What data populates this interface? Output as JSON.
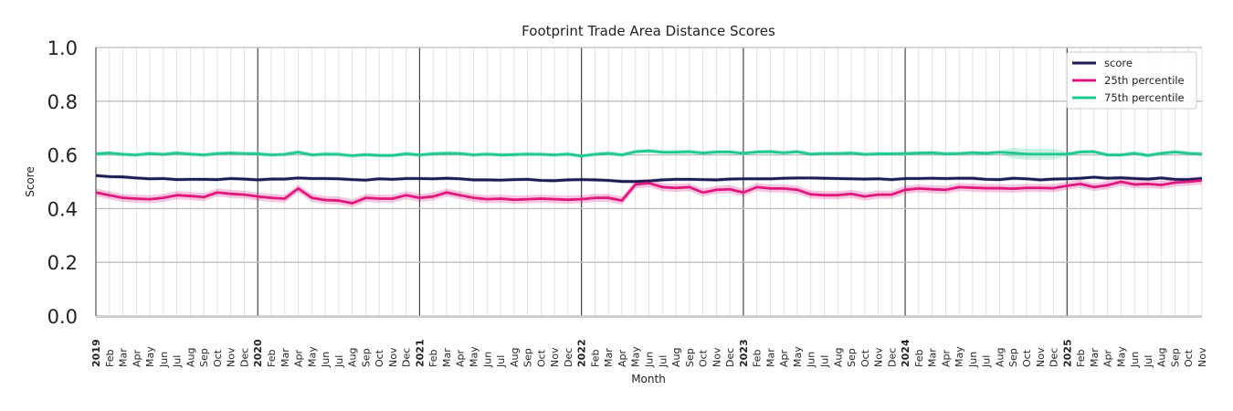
{
  "chart_data": {
    "type": "line",
    "title": "Footprint Trade Area Distance Scores",
    "xlabel": "Month",
    "ylabel": "Score",
    "ylim": [
      0.0,
      1.0
    ],
    "yticks": [
      "0.0",
      "0.2",
      "0.4",
      "0.6",
      "0.8",
      "1.0"
    ],
    "grid": true,
    "legend_position": "top-right",
    "x_start": "2019-01",
    "x_end": "2025-11",
    "x_tick_labels": [
      "2019",
      "Feb",
      "Mar",
      "Apr",
      "May",
      "Jun",
      "Jul",
      "Aug",
      "Sep",
      "Oct",
      "Nov",
      "Dec",
      "2020",
      "Feb",
      "Mar",
      "Apr",
      "May",
      "Jun",
      "Jul",
      "Aug",
      "Sep",
      "Oct",
      "Nov",
      "Dec",
      "2021",
      "Feb",
      "Mar",
      "Apr",
      "May",
      "Jun",
      "Jul",
      "Aug",
      "Sep",
      "Oct",
      "Nov",
      "Dec",
      "2022",
      "Feb",
      "Mar",
      "Apr",
      "May",
      "Jun",
      "Jul",
      "Aug",
      "Sep",
      "Oct",
      "Nov",
      "Dec",
      "2023",
      "Feb",
      "Mar",
      "Apr",
      "May",
      "Jun",
      "Jul",
      "Aug",
      "Sep",
      "Oct",
      "Nov",
      "Dec",
      "2024",
      "Feb",
      "Mar",
      "Apr",
      "May",
      "Jun",
      "Jul",
      "Aug",
      "Sep",
      "Oct",
      "Nov",
      "Dec",
      "2025",
      "Feb",
      "Mar",
      "Apr",
      "May",
      "Jun",
      "Jul",
      "Aug",
      "Sep",
      "Oct",
      "Nov"
    ],
    "series": [
      {
        "name": "score",
        "color": "#1c1c54",
        "values": [
          0.523,
          0.519,
          0.518,
          0.514,
          0.511,
          0.512,
          0.508,
          0.509,
          0.509,
          0.508,
          0.512,
          0.51,
          0.507,
          0.51,
          0.51,
          0.514,
          0.512,
          0.512,
          0.511,
          0.508,
          0.506,
          0.511,
          0.509,
          0.512,
          0.512,
          0.511,
          0.513,
          0.511,
          0.507,
          0.507,
          0.506,
          0.508,
          0.509,
          0.505,
          0.504,
          0.507,
          0.508,
          0.507,
          0.505,
          0.501,
          0.501,
          0.503,
          0.507,
          0.509,
          0.509,
          0.508,
          0.507,
          0.51,
          0.511,
          0.511,
          0.511,
          0.513,
          0.514,
          0.514,
          0.513,
          0.512,
          0.511,
          0.51,
          0.511,
          0.508,
          0.512,
          0.512,
          0.513,
          0.512,
          0.513,
          0.513,
          0.509,
          0.508,
          0.513,
          0.511,
          0.507,
          0.51,
          0.511,
          0.513,
          0.517,
          0.513,
          0.515,
          0.512,
          0.51,
          0.514,
          0.509,
          0.508,
          0.512
        ]
      },
      {
        "name": "25th percentile",
        "color": "#e0177f",
        "values": [
          0.46,
          0.45,
          0.44,
          0.437,
          0.435,
          0.44,
          0.45,
          0.447,
          0.443,
          0.46,
          0.455,
          0.452,
          0.445,
          0.44,
          0.437,
          0.475,
          0.44,
          0.432,
          0.43,
          0.42,
          0.44,
          0.437,
          0.437,
          0.45,
          0.44,
          0.445,
          0.46,
          0.45,
          0.44,
          0.435,
          0.437,
          0.433,
          0.435,
          0.437,
          0.435,
          0.433,
          0.435,
          0.44,
          0.44,
          0.43,
          0.49,
          0.495,
          0.48,
          0.477,
          0.48,
          0.46,
          0.47,
          0.472,
          0.46,
          0.48,
          0.475,
          0.475,
          0.47,
          0.453,
          0.45,
          0.45,
          0.455,
          0.445,
          0.452,
          0.452,
          0.47,
          0.475,
          0.472,
          0.47,
          0.48,
          0.478,
          0.476,
          0.476,
          0.474,
          0.477,
          0.477,
          0.476,
          0.485,
          0.492,
          0.48,
          0.487,
          0.5,
          0.49,
          0.492,
          0.488,
          0.497,
          0.5,
          0.505
        ]
      },
      {
        "name": "75th percentile",
        "color": "#1fc88f",
        "values": [
          0.604,
          0.607,
          0.602,
          0.6,
          0.605,
          0.602,
          0.607,
          0.603,
          0.6,
          0.605,
          0.607,
          0.605,
          0.604,
          0.6,
          0.602,
          0.61,
          0.6,
          0.603,
          0.602,
          0.597,
          0.601,
          0.598,
          0.598,
          0.604,
          0.6,
          0.604,
          0.606,
          0.605,
          0.6,
          0.603,
          0.6,
          0.601,
          0.603,
          0.602,
          0.6,
          0.603,
          0.596,
          0.602,
          0.606,
          0.6,
          0.612,
          0.615,
          0.61,
          0.61,
          0.612,
          0.607,
          0.611,
          0.611,
          0.606,
          0.611,
          0.612,
          0.608,
          0.612,
          0.603,
          0.605,
          0.605,
          0.607,
          0.602,
          0.604,
          0.604,
          0.605,
          0.607,
          0.608,
          0.604,
          0.605,
          0.608,
          0.606,
          0.61,
          0.607,
          0.603,
          0.603,
          0.603,
          0.603,
          0.611,
          0.612,
          0.6,
          0.6,
          0.606,
          0.598,
          0.606,
          0.611,
          0.606,
          0.603
        ]
      }
    ]
  }
}
